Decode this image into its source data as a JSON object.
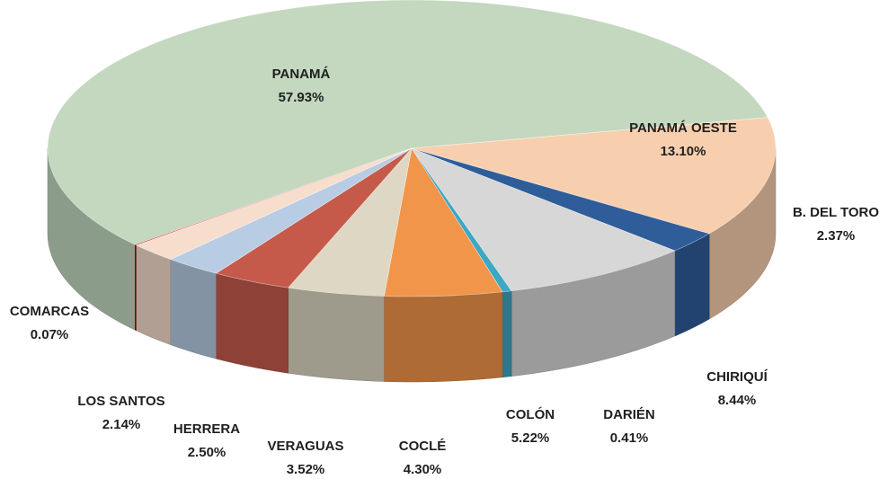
{
  "chart_data": {
    "type": "pie3d",
    "categories": [
      "PANAMÁ",
      "PANAMÁ OESTE",
      "B. DEL TORO",
      "CHIRIQUÍ",
      "DARIÉN",
      "COLÓN",
      "COCLÉ",
      "VERAGUAS",
      "HERRERA",
      "LOS SANTOS",
      "COMARCAS"
    ],
    "values": [
      57.93,
      13.1,
      2.37,
      8.44,
      0.41,
      5.22,
      4.3,
      3.52,
      2.5,
      2.14,
      0.07
    ],
    "value_labels": [
      "57.93%",
      "13.10%",
      "2.37%",
      "8.44%",
      "0.41%",
      "5.22%",
      "4.30%",
      "3.52%",
      "2.50%",
      "2.14%",
      "0.07%"
    ],
    "colors": [
      "#c3d8bf",
      "#f8cfae",
      "#2f5d9a",
      "#d7d7d7",
      "#3ea7c2",
      "#f1954a",
      "#ddd7c3",
      "#c55a4b",
      "#b8cce4",
      "#f6ddcc",
      "#c00000"
    ]
  }
}
